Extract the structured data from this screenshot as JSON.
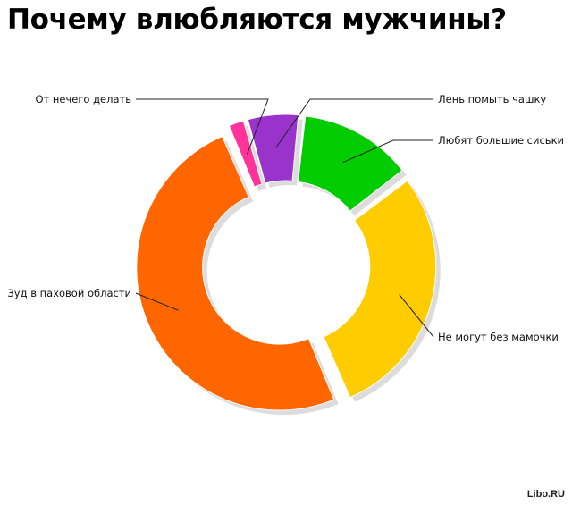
{
  "chart_data": {
    "type": "pie",
    "style": "donut",
    "title": "Почему влюбляются мужчины?",
    "slices": [
      {
        "label": "От нечего делать",
        "value": 2,
        "color": "#ff3399"
      },
      {
        "label": "Лень помыть чашку",
        "value": 6,
        "color": "#9933cc"
      },
      {
        "label": "Любят большие сиськи",
        "value": 13,
        "color": "#00cc00"
      },
      {
        "label": "Не могут без мамочки",
        "value": 29,
        "color": "#ffcc00"
      },
      {
        "label": "Зуд в паховой области",
        "value": 50,
        "color": "#ff6600"
      }
    ],
    "legend": "none"
  },
  "credit": "Libo.RU"
}
